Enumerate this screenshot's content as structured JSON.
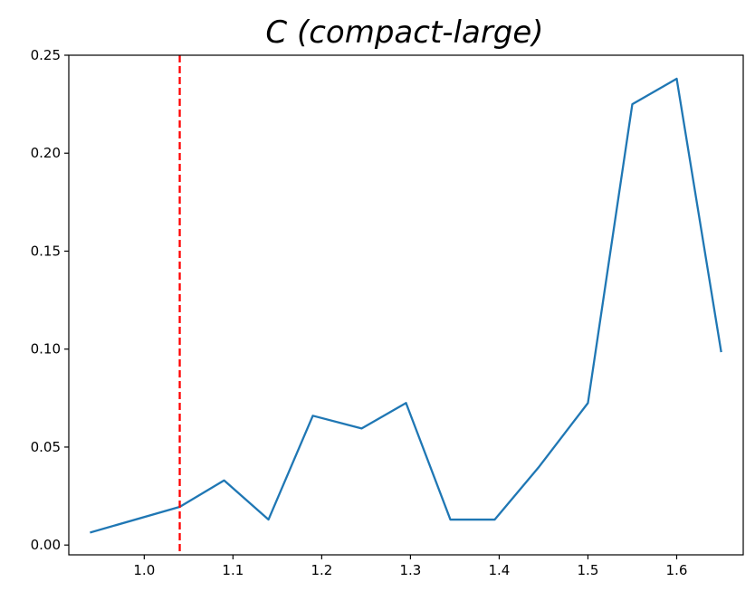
{
  "chart_data": {
    "type": "line",
    "title": "C (compact-large)",
    "xlabel": "",
    "ylabel": "",
    "xlim": [
      0.915,
      1.675
    ],
    "ylim": [
      -0.005,
      0.25
    ],
    "x_ticks": [
      1.0,
      1.1,
      1.2,
      1.3,
      1.4,
      1.5,
      1.6
    ],
    "x_tick_labels": [
      "1.0",
      "1.1",
      "1.2",
      "1.3",
      "1.4",
      "1.5",
      "1.6"
    ],
    "y_ticks": [
      0.0,
      0.05,
      0.1,
      0.15,
      0.2,
      0.25
    ],
    "y_tick_labels": [
      "0.00",
      "0.05",
      "0.10",
      "0.15",
      "0.20",
      "0.25"
    ],
    "grid": false,
    "series": [
      {
        "color": "#1f77b4",
        "x": [
          0.94,
          1.04,
          1.09,
          1.14,
          1.19,
          1.245,
          1.295,
          1.345,
          1.395,
          1.445,
          1.5,
          1.55,
          1.6,
          1.65
        ],
        "y": [
          0.0065,
          0.0195,
          0.033,
          0.013,
          0.066,
          0.0595,
          0.0725,
          0.013,
          0.013,
          0.04,
          0.0725,
          0.225,
          0.238,
          0.099
        ]
      }
    ],
    "reference_lines": [
      {
        "orientation": "vertical",
        "x": 1.04,
        "color": "#ff0000",
        "style": "dashed"
      }
    ]
  }
}
